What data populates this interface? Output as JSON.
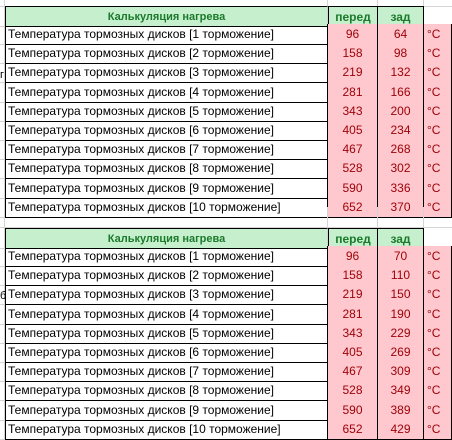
{
  "table1": {
    "title": "Калькуляция нагрева",
    "col_front": "перед",
    "col_rear": "зад",
    "rows": [
      {
        "label": "Температура тормозных дисков [1 торможение]",
        "front": "96",
        "rear": "64",
        "unit": "°C"
      },
      {
        "label": "Температура тормозных дисков [2 торможение]",
        "front": "158",
        "rear": "98",
        "unit": "°C"
      },
      {
        "label": "Температура тормозных дисков [3 торможение]",
        "front": "219",
        "rear": "132",
        "unit": "°C"
      },
      {
        "label": "Температура тормозных дисков [4 торможение]",
        "front": "281",
        "rear": "166",
        "unit": "°C"
      },
      {
        "label": "Температура тормозных дисков [5 торможение]",
        "front": "343",
        "rear": "200",
        "unit": "°C"
      },
      {
        "label": "Температура тормозных дисков [6 торможение]",
        "front": "405",
        "rear": "234",
        "unit": "°C"
      },
      {
        "label": "Температура тормозных дисков [7 торможение]",
        "front": "467",
        "rear": "268",
        "unit": "°C"
      },
      {
        "label": "Температура тормозных дисков [8 торможение]",
        "front": "528",
        "rear": "302",
        "unit": "°C"
      },
      {
        "label": "Температура тормозных дисков [9 торможение]",
        "front": "590",
        "rear": "336",
        "unit": "°C"
      },
      {
        "label": "Температура тормозных дисков [10 торможение]",
        "front": "652",
        "rear": "370",
        "unit": "°C"
      }
    ]
  },
  "table2": {
    "title": "Калькуляция нагрева",
    "col_front": "перед",
    "col_rear": "зад",
    "rows": [
      {
        "label": "Температура тормозных дисков [1 торможение]",
        "front": "96",
        "rear": "70",
        "unit": "°C"
      },
      {
        "label": "Температура тормозных дисков [2 торможение]",
        "front": "158",
        "rear": "110",
        "unit": "°C"
      },
      {
        "label": "Температура тормозных дисков [3 торможение]",
        "front": "219",
        "rear": "150",
        "unit": "°C"
      },
      {
        "label": "Температура тормозных дисков [4 торможение]",
        "front": "281",
        "rear": "190",
        "unit": "°C"
      },
      {
        "label": "Температура тормозных дисков [5 торможение]",
        "front": "343",
        "rear": "229",
        "unit": "°C"
      },
      {
        "label": "Температура тормозных дисков [6 торможение]",
        "front": "405",
        "rear": "269",
        "unit": "°C"
      },
      {
        "label": "Температура тормозных дисков [7 торможение]",
        "front": "467",
        "rear": "309",
        "unit": "°C"
      },
      {
        "label": "Температура тормозных дисков [8 торможение]",
        "front": "528",
        "rear": "349",
        "unit": "°C"
      },
      {
        "label": "Температура тормозных дисков [9 торможение]",
        "front": "590",
        "rear": "389",
        "unit": "°C"
      },
      {
        "label": "Температура тормозных дисков [10 торможение]",
        "front": "652",
        "rear": "429",
        "unit": "°C"
      }
    ]
  },
  "stubs": {
    "row3": "г",
    "row14": "б"
  },
  "colors": {
    "header_bg": "#c6efce",
    "header_text": "#1b7a2b",
    "value_bg": "#ffc7ce",
    "value_text": "#9c0006"
  }
}
